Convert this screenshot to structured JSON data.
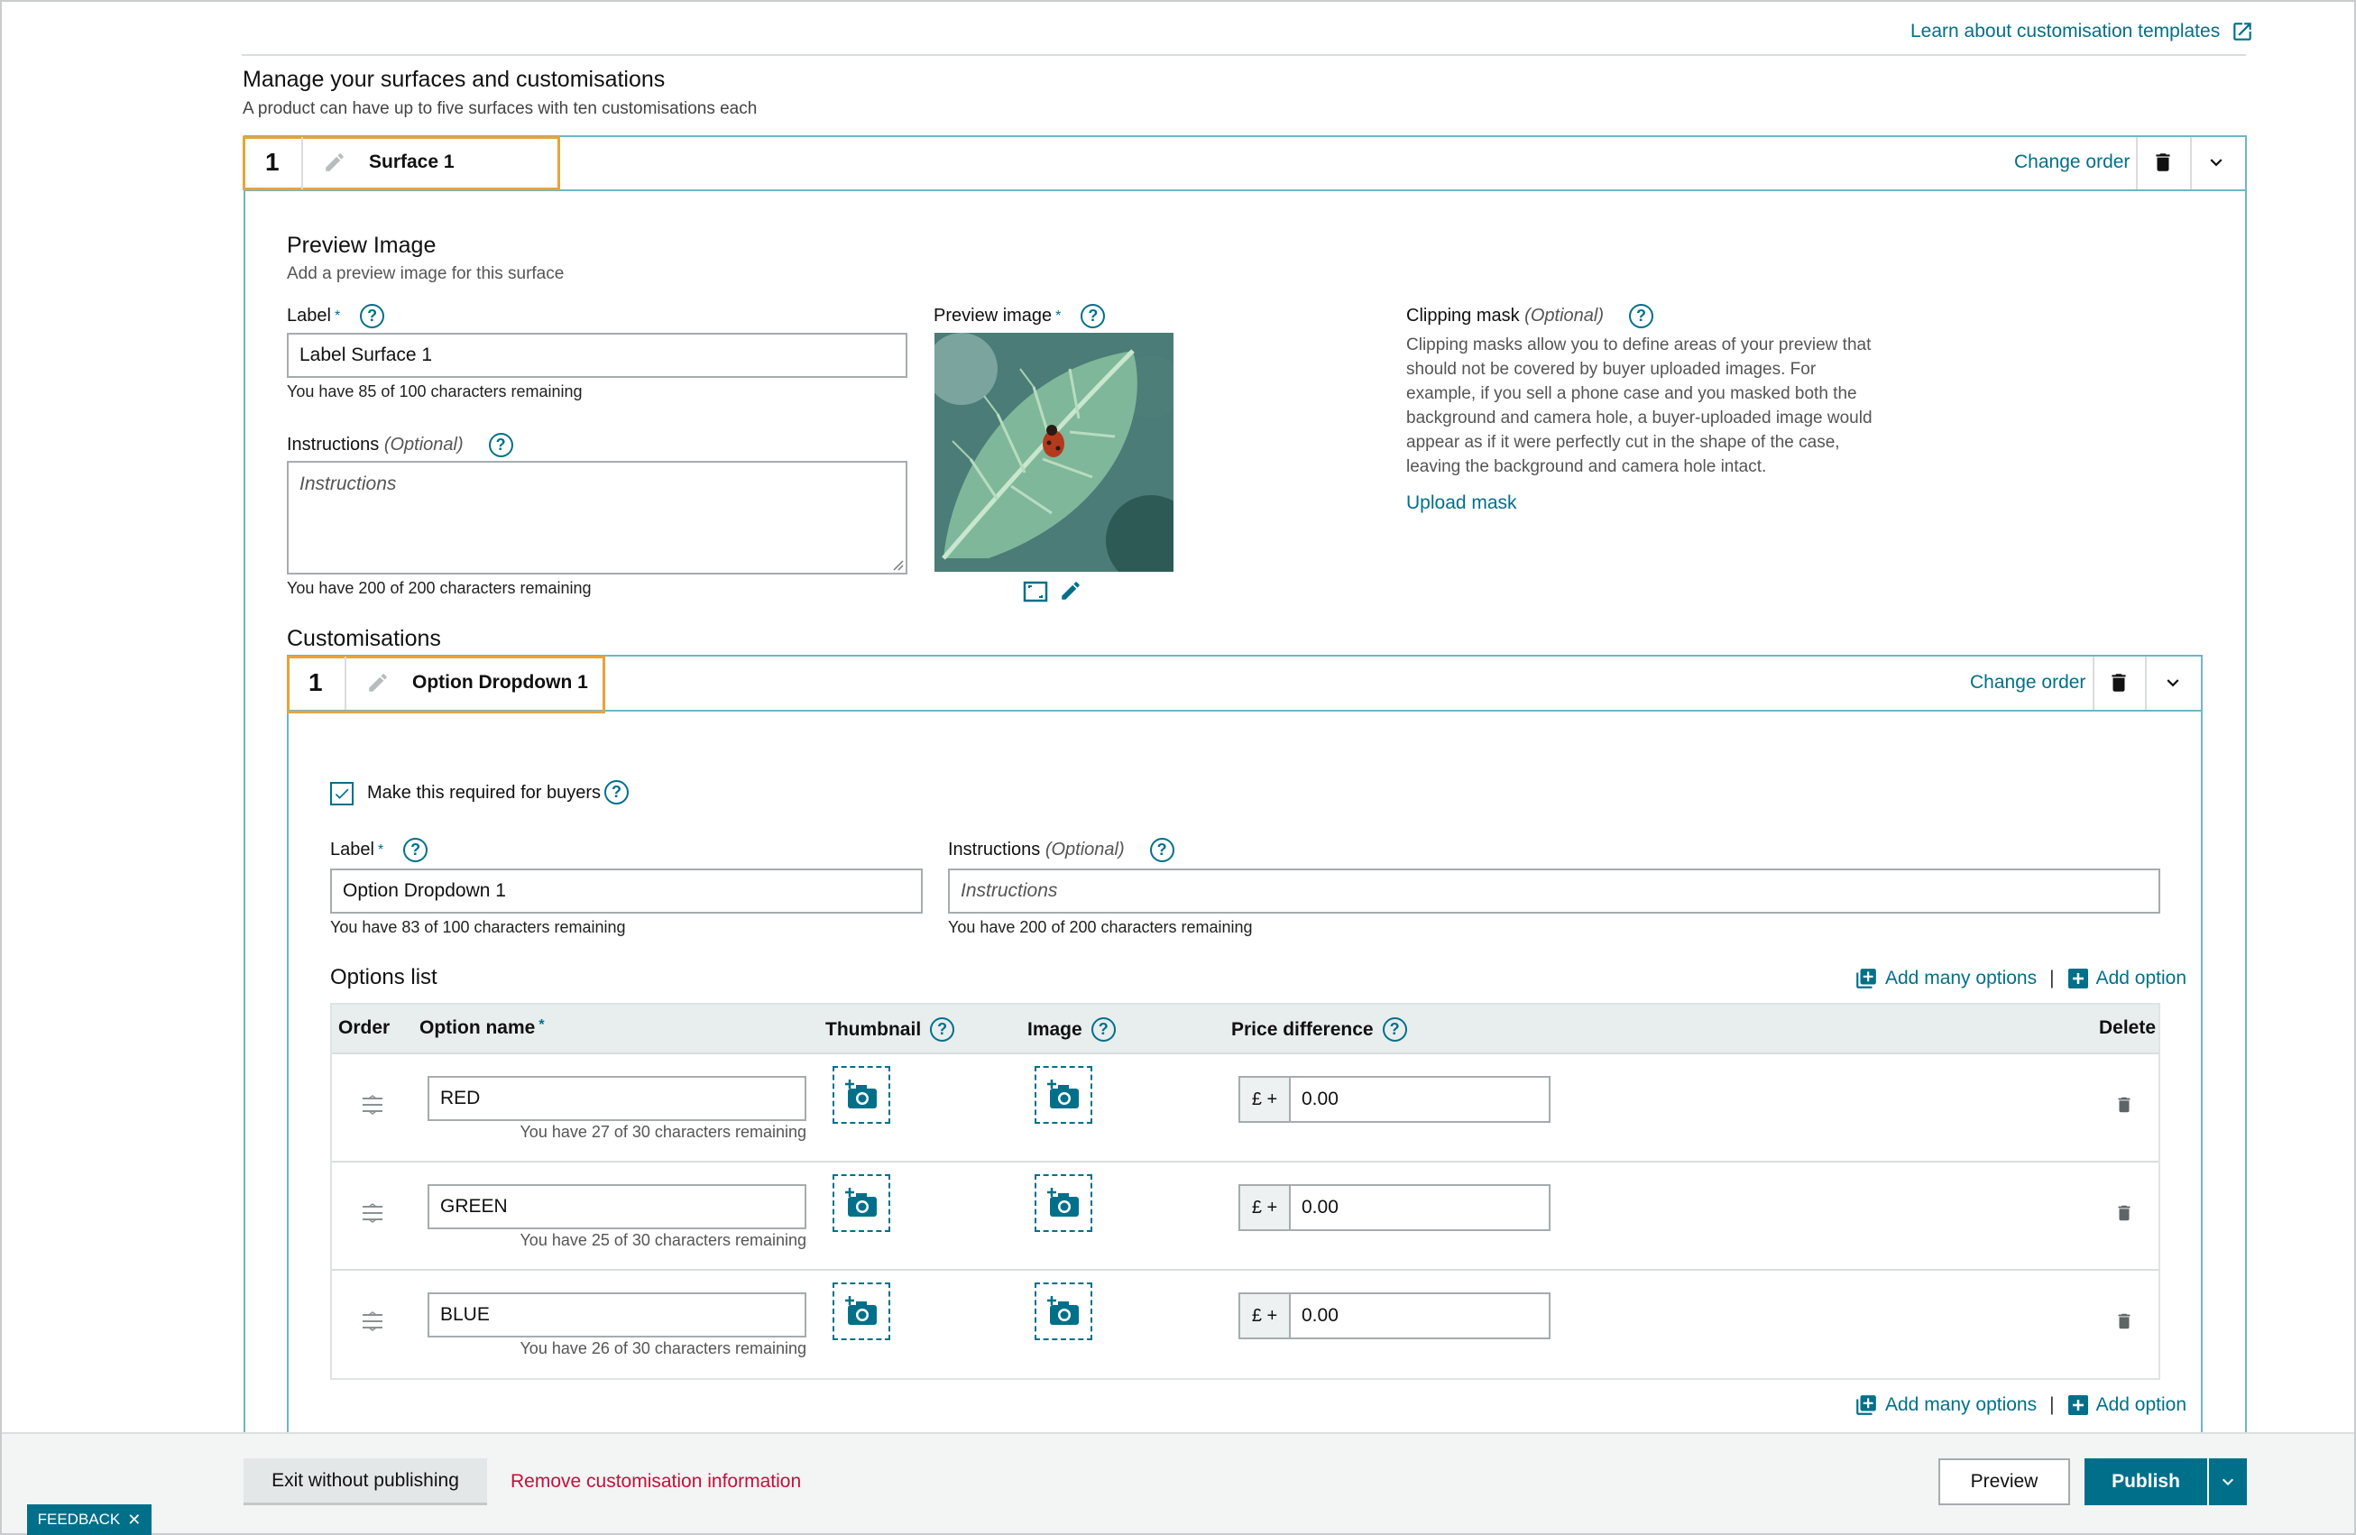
{
  "top_link": "Learn about customisation templates",
  "manage": {
    "title": "Manage your surfaces and customisations",
    "subtitle": "A product can have up to five surfaces with ten customisations each"
  },
  "surface": {
    "number": "1",
    "name": "Surface 1",
    "change_order": "Change order",
    "preview_title": "Preview Image",
    "preview_subtitle": "Add a preview image for this surface",
    "label_caption": "Label",
    "required_mark": "*",
    "label_value": "Label Surface 1",
    "label_hint": "You have 85 of 100 characters remaining",
    "instructions_caption": "Instructions",
    "optional_text": "(Optional)",
    "instructions_placeholder": "Instructions",
    "instructions_hint": "You have 200 of 200 characters remaining",
    "preview_image_caption": "Preview image",
    "clipping_caption": "Clipping mask",
    "clipping_text": "Clipping masks allow you to define areas of your preview that should not be covered by buyer uploaded images. For example, if you sell a phone case and you masked both the background and camera hole, a buyer-uploaded image would appear as if it were perfectly cut in the shape of the case, leaving the background and camera hole intact.",
    "upload_mask": "Upload mask"
  },
  "customisations": {
    "title": "Customisations",
    "number": "1",
    "name": "Option Dropdown 1",
    "change_order": "Change order",
    "required_checkbox_label": "Make this required for buyers",
    "required_checked": true,
    "label_caption": "Label",
    "label_value": "Option Dropdown 1",
    "label_hint": "You have 83 of 100 characters remaining",
    "instructions_caption": "Instructions",
    "instructions_placeholder": "Instructions",
    "instructions_hint": "You have 200 of 200 characters remaining",
    "options_title": "Options list",
    "add_many": "Add many options",
    "separator": "|",
    "add_option": "Add option",
    "columns": {
      "order": "Order",
      "option_name": "Option name",
      "thumbnail": "Thumbnail",
      "image": "Image",
      "price": "Price difference",
      "delete": "Delete"
    },
    "currency_prefix": "£ +",
    "rows": [
      {
        "name": "RED",
        "hint": "You have 27 of 30 characters remaining",
        "price": "0.00"
      },
      {
        "name": "GREEN",
        "hint": "You have 25 of 30 characters remaining",
        "price": "0.00"
      },
      {
        "name": "BLUE",
        "hint": "You have 26 of 30 characters remaining",
        "price": "0.00"
      }
    ]
  },
  "footer": {
    "exit": "Exit without publishing",
    "remove": "Remove customisation information",
    "preview": "Preview",
    "publish": "Publish"
  },
  "feedback": "FEEDBACK",
  "colors": {
    "accent": "#00708a",
    "highlight": "#e8a33a",
    "danger": "#c4113a"
  }
}
